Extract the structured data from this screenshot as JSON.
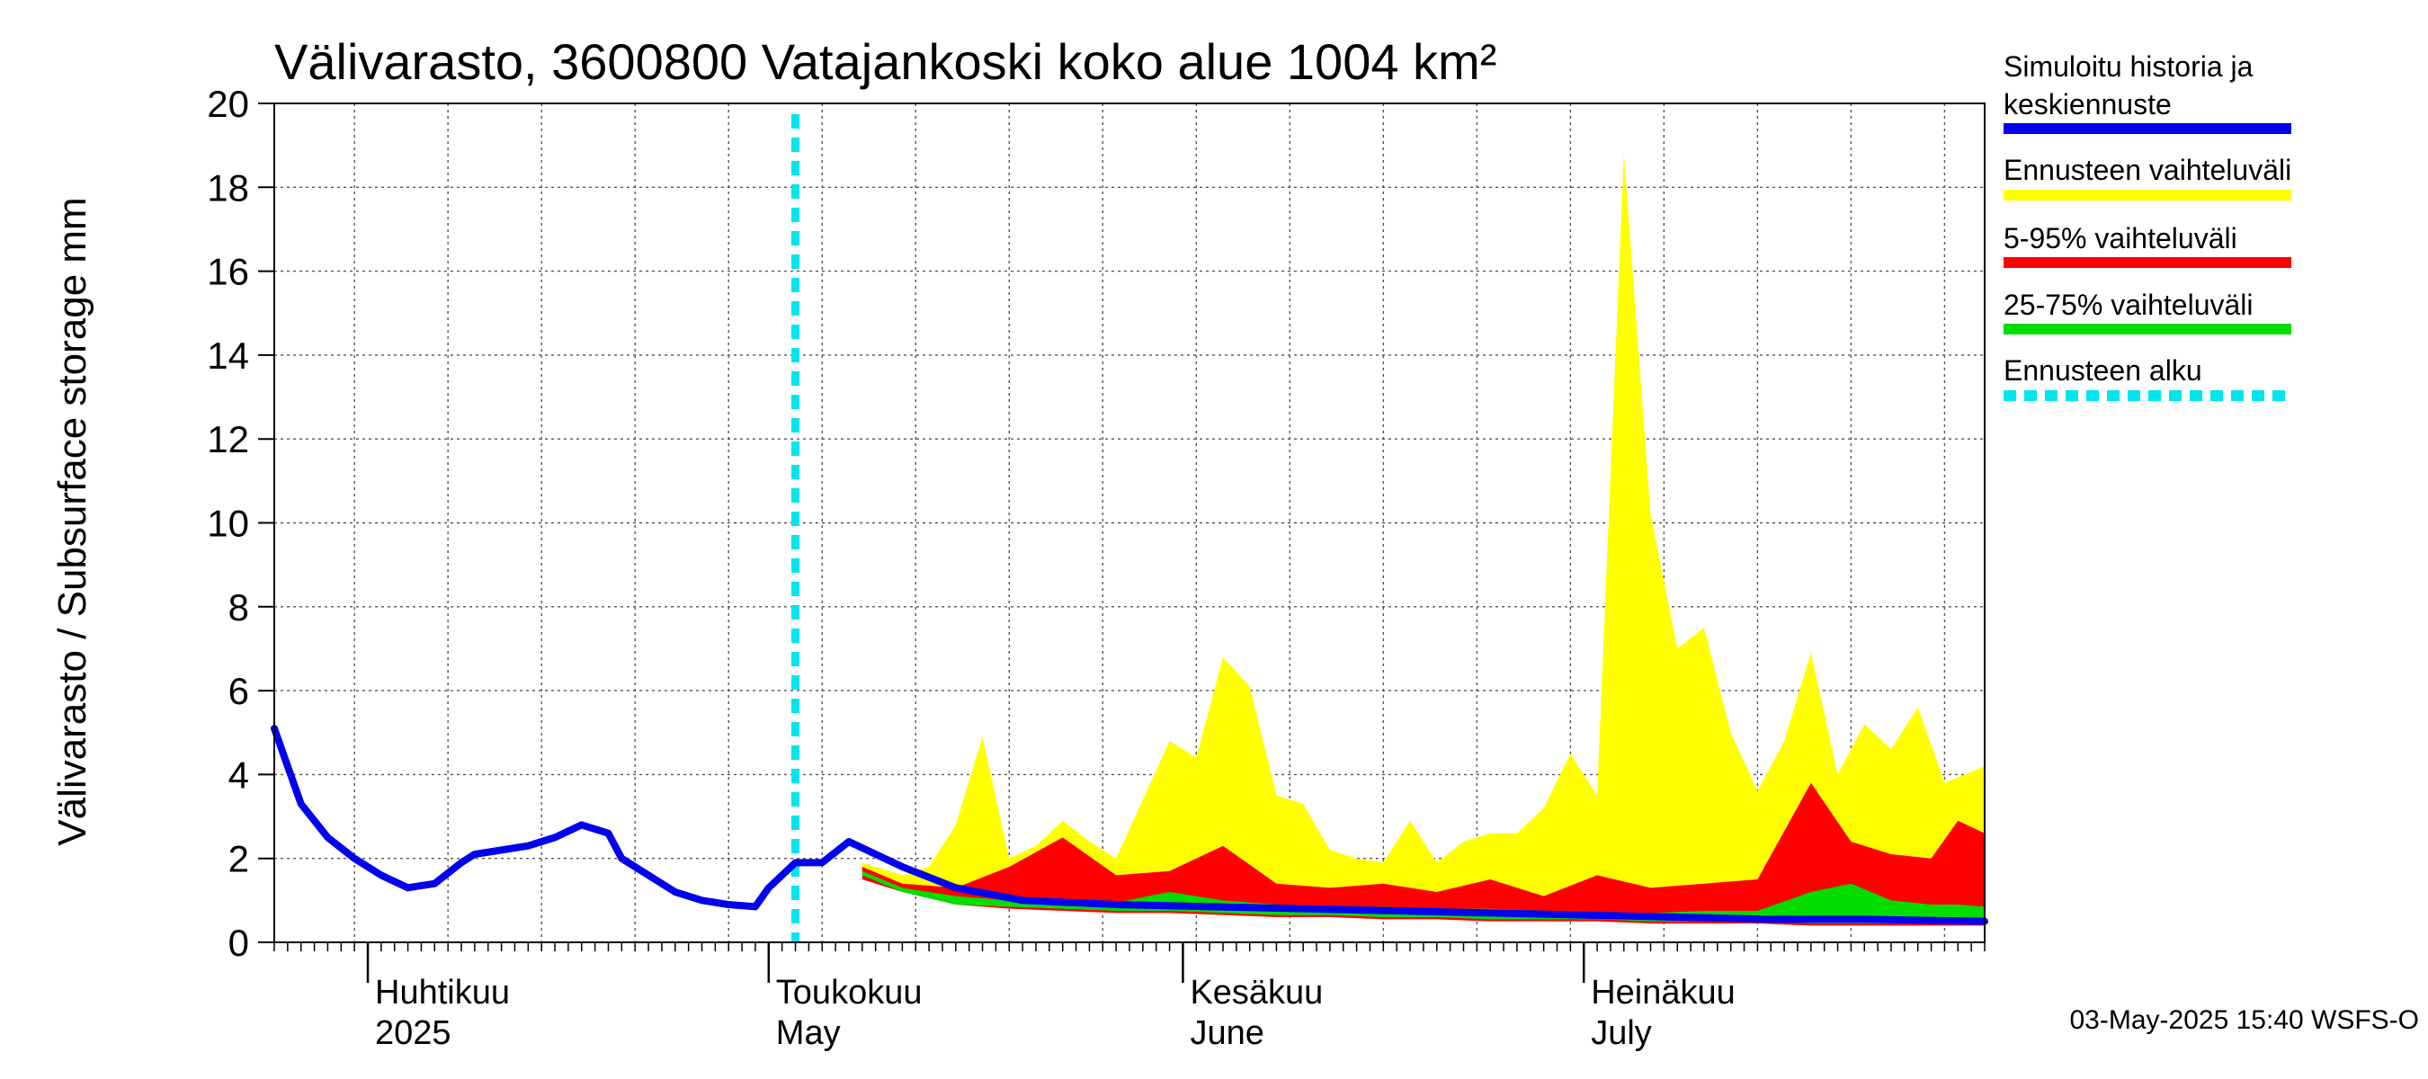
{
  "chart_data": {
    "type": "area",
    "title": "Välivarasto, 3600800 Vatajankoski koko alue 1004 km²",
    "ylabel": "Välivarasto / Subsurface storage  mm",
    "xlabel": "",
    "ylim": [
      0,
      20
    ],
    "yticks": [
      0,
      2,
      4,
      6,
      8,
      10,
      12,
      14,
      16,
      18,
      20
    ],
    "xlim": [
      "2025-03-25",
      "2025-07-31"
    ],
    "grid": true,
    "legend_position": "right",
    "forecast_start": "2025-05-03",
    "month_labels": [
      {
        "date": "2025-04-01",
        "fi": "Huhtikuu",
        "en": "2025"
      },
      {
        "date": "2025-05-01",
        "fi": "Toukokuu",
        "en": "May"
      },
      {
        "date": "2025-06-01",
        "fi": "Kesäkuu",
        "en": "June"
      },
      {
        "date": "2025-07-01",
        "fi": "Heinäkuu",
        "en": "July"
      }
    ],
    "series": [
      {
        "name": "Simuloitu historia ja keskiennuste",
        "color": "#0000ee",
        "x": [
          "2025-03-25",
          "2025-03-27",
          "2025-03-29",
          "2025-03-31",
          "2025-04-02",
          "2025-04-04",
          "2025-04-06",
          "2025-04-08",
          "2025-04-09",
          "2025-04-11",
          "2025-04-13",
          "2025-04-15",
          "2025-04-17",
          "2025-04-19",
          "2025-04-20",
          "2025-04-22",
          "2025-04-24",
          "2025-04-26",
          "2025-04-28",
          "2025-04-30",
          "2025-05-01",
          "2025-05-03",
          "2025-05-05",
          "2025-05-07",
          "2025-05-11",
          "2025-05-15",
          "2025-05-20",
          "2025-05-27",
          "2025-06-03",
          "2025-06-10",
          "2025-06-17",
          "2025-06-24",
          "2025-07-01",
          "2025-07-08",
          "2025-07-15",
          "2025-07-22",
          "2025-07-31"
        ],
        "y": [
          5.1,
          3.3,
          2.5,
          2.0,
          1.6,
          1.3,
          1.4,
          1.9,
          2.1,
          2.2,
          2.3,
          2.5,
          2.8,
          2.6,
          2.0,
          1.6,
          1.2,
          1.0,
          0.9,
          0.85,
          1.3,
          1.9,
          1.9,
          2.4,
          1.8,
          1.3,
          1.0,
          0.9,
          0.85,
          0.8,
          0.75,
          0.7,
          0.65,
          0.6,
          0.55,
          0.55,
          0.5
        ]
      },
      {
        "name": "Ennusteen vaihteluväli",
        "color": "#ffff00",
        "x": [
          "2025-05-08",
          "2025-05-11",
          "2025-05-13",
          "2025-05-15",
          "2025-05-17",
          "2025-05-19",
          "2025-05-21",
          "2025-05-23",
          "2025-05-25",
          "2025-05-27",
          "2025-05-29",
          "2025-05-31",
          "2025-06-02",
          "2025-06-04",
          "2025-06-06",
          "2025-06-08",
          "2025-06-10",
          "2025-06-12",
          "2025-06-14",
          "2025-06-16",
          "2025-06-18",
          "2025-06-20",
          "2025-06-22",
          "2025-06-24",
          "2025-06-26",
          "2025-06-28",
          "2025-06-30",
          "2025-07-02",
          "2025-07-04",
          "2025-07-06",
          "2025-07-08",
          "2025-07-10",
          "2025-07-12",
          "2025-07-14",
          "2025-07-16",
          "2025-07-18",
          "2025-07-20",
          "2025-07-22",
          "2025-07-24",
          "2025-07-26",
          "2025-07-28",
          "2025-07-31"
        ],
        "y_low": [
          1.6,
          1.3,
          1.1,
          1.0,
          0.9,
          0.85,
          0.8,
          0.8,
          0.75,
          0.75,
          0.7,
          0.7,
          0.7,
          0.65,
          0.65,
          0.65,
          0.6,
          0.6,
          0.6,
          0.6,
          0.6,
          0.55,
          0.55,
          0.55,
          0.55,
          0.5,
          0.5,
          0.5,
          0.5,
          0.5,
          0.5,
          0.45,
          0.45,
          0.45,
          0.45,
          0.45,
          0.45,
          0.45,
          0.4,
          0.4,
          0.4,
          0.4
        ],
        "y_high": [
          1.9,
          1.6,
          1.8,
          2.8,
          4.9,
          2.0,
          2.3,
          2.9,
          2.4,
          2.0,
          3.4,
          4.8,
          4.4,
          6.8,
          6.1,
          3.5,
          3.3,
          2.2,
          2.0,
          1.9,
          2.9,
          1.9,
          2.4,
          2.6,
          2.6,
          3.2,
          4.5,
          3.5,
          18.8,
          10.2,
          7.0,
          7.5,
          5.0,
          3.6,
          4.8,
          6.9,
          4.0,
          5.2,
          4.6,
          5.6,
          3.8,
          4.2
        ]
      },
      {
        "name": "5-95% vaihteluväli",
        "color": "#ff0000",
        "x": [
          "2025-05-08",
          "2025-05-11",
          "2025-05-15",
          "2025-05-19",
          "2025-05-23",
          "2025-05-27",
          "2025-05-31",
          "2025-06-04",
          "2025-06-08",
          "2025-06-12",
          "2025-06-16",
          "2025-06-20",
          "2025-06-24",
          "2025-06-28",
          "2025-07-02",
          "2025-07-06",
          "2025-07-10",
          "2025-07-14",
          "2025-07-18",
          "2025-07-21",
          "2025-07-24",
          "2025-07-27",
          "2025-07-29",
          "2025-07-31"
        ],
        "y_low": [
          1.5,
          1.2,
          0.9,
          0.8,
          0.75,
          0.7,
          0.7,
          0.65,
          0.6,
          0.6,
          0.55,
          0.55,
          0.5,
          0.5,
          0.5,
          0.45,
          0.45,
          0.45,
          0.4,
          0.4,
          0.4,
          0.4,
          0.4,
          0.4
        ],
        "y_high": [
          1.8,
          1.4,
          1.3,
          1.8,
          2.5,
          1.6,
          1.7,
          2.3,
          1.4,
          1.3,
          1.4,
          1.2,
          1.5,
          1.1,
          1.6,
          1.3,
          1.4,
          1.5,
          3.8,
          2.4,
          2.1,
          2.0,
          2.9,
          2.6
        ]
      },
      {
        "name": "25-75% vaihteluväli",
        "color": "#00dd00",
        "x": [
          "2025-05-08",
          "2025-05-11",
          "2025-05-15",
          "2025-05-19",
          "2025-05-23",
          "2025-05-27",
          "2025-05-31",
          "2025-06-04",
          "2025-06-08",
          "2025-06-12",
          "2025-06-16",
          "2025-06-20",
          "2025-06-24",
          "2025-06-28",
          "2025-07-02",
          "2025-07-06",
          "2025-07-10",
          "2025-07-14",
          "2025-07-18",
          "2025-07-21",
          "2025-07-24",
          "2025-07-27",
          "2025-07-29",
          "2025-07-31"
        ],
        "y_low": [
          1.6,
          1.2,
          0.9,
          0.85,
          0.8,
          0.75,
          0.75,
          0.7,
          0.65,
          0.65,
          0.6,
          0.6,
          0.55,
          0.55,
          0.55,
          0.5,
          0.5,
          0.5,
          0.45,
          0.45,
          0.45,
          0.45,
          0.45,
          0.45
        ],
        "y_high": [
          1.7,
          1.3,
          1.1,
          1.0,
          1.0,
          0.95,
          1.2,
          1.0,
          0.9,
          0.85,
          0.85,
          0.8,
          0.8,
          0.75,
          0.7,
          0.7,
          0.75,
          0.75,
          1.2,
          1.4,
          1.0,
          0.9,
          0.9,
          0.85
        ]
      },
      {
        "name": "Ennusteen alku",
        "color": "#00e5ee",
        "x": [
          "2025-05-03"
        ]
      }
    ],
    "footer": "03-May-2025 15:40 WSFS-O"
  },
  "legend": {
    "items": [
      {
        "lines": [
          "Simuloitu historia ja",
          "keskiennuste"
        ],
        "color": "#0000ee",
        "style": "solid"
      },
      {
        "lines": [
          "Ennusteen vaihteluväli"
        ],
        "color": "#ffff00",
        "style": "solid"
      },
      {
        "lines": [
          "5-95% vaihteluväli"
        ],
        "color": "#ff0000",
        "style": "solid"
      },
      {
        "lines": [
          "25-75% vaihteluväli"
        ],
        "color": "#00dd00",
        "style": "solid"
      },
      {
        "lines": [
          "Ennusteen alku"
        ],
        "color": "#00e5ee",
        "style": "dashed"
      }
    ]
  }
}
